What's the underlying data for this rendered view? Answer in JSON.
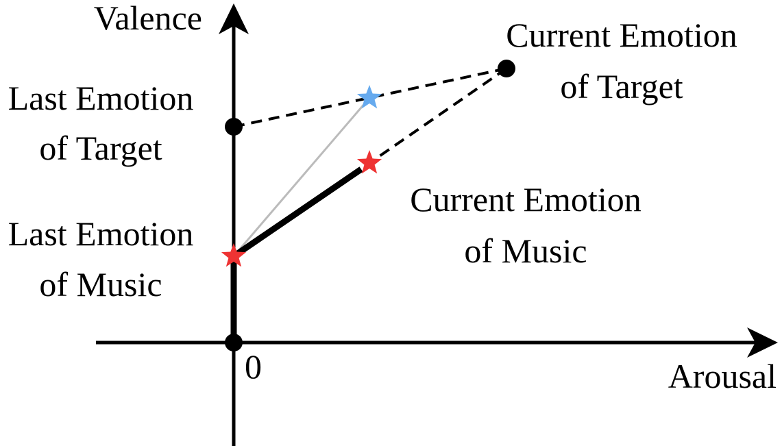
{
  "colors": {
    "ink": "#000000",
    "music_star": "#ee3333",
    "alt_star": "#66aaee",
    "alt_path": "#bbbbbb"
  },
  "axes": {
    "y_label": "Valence",
    "x_label": "Arousal",
    "origin_label": "0"
  },
  "labels": {
    "last_target": [
      "Last Emotion",
      "of Target"
    ],
    "current_target": [
      "Current Emotion",
      "of Target"
    ],
    "last_music": [
      "Last Emotion",
      "of Music"
    ],
    "current_music": [
      "Current Emotion",
      "of Music"
    ]
  },
  "icons": {
    "point_marker": "filled-circle",
    "music_marker": "star",
    "alt_marker": "star"
  }
}
